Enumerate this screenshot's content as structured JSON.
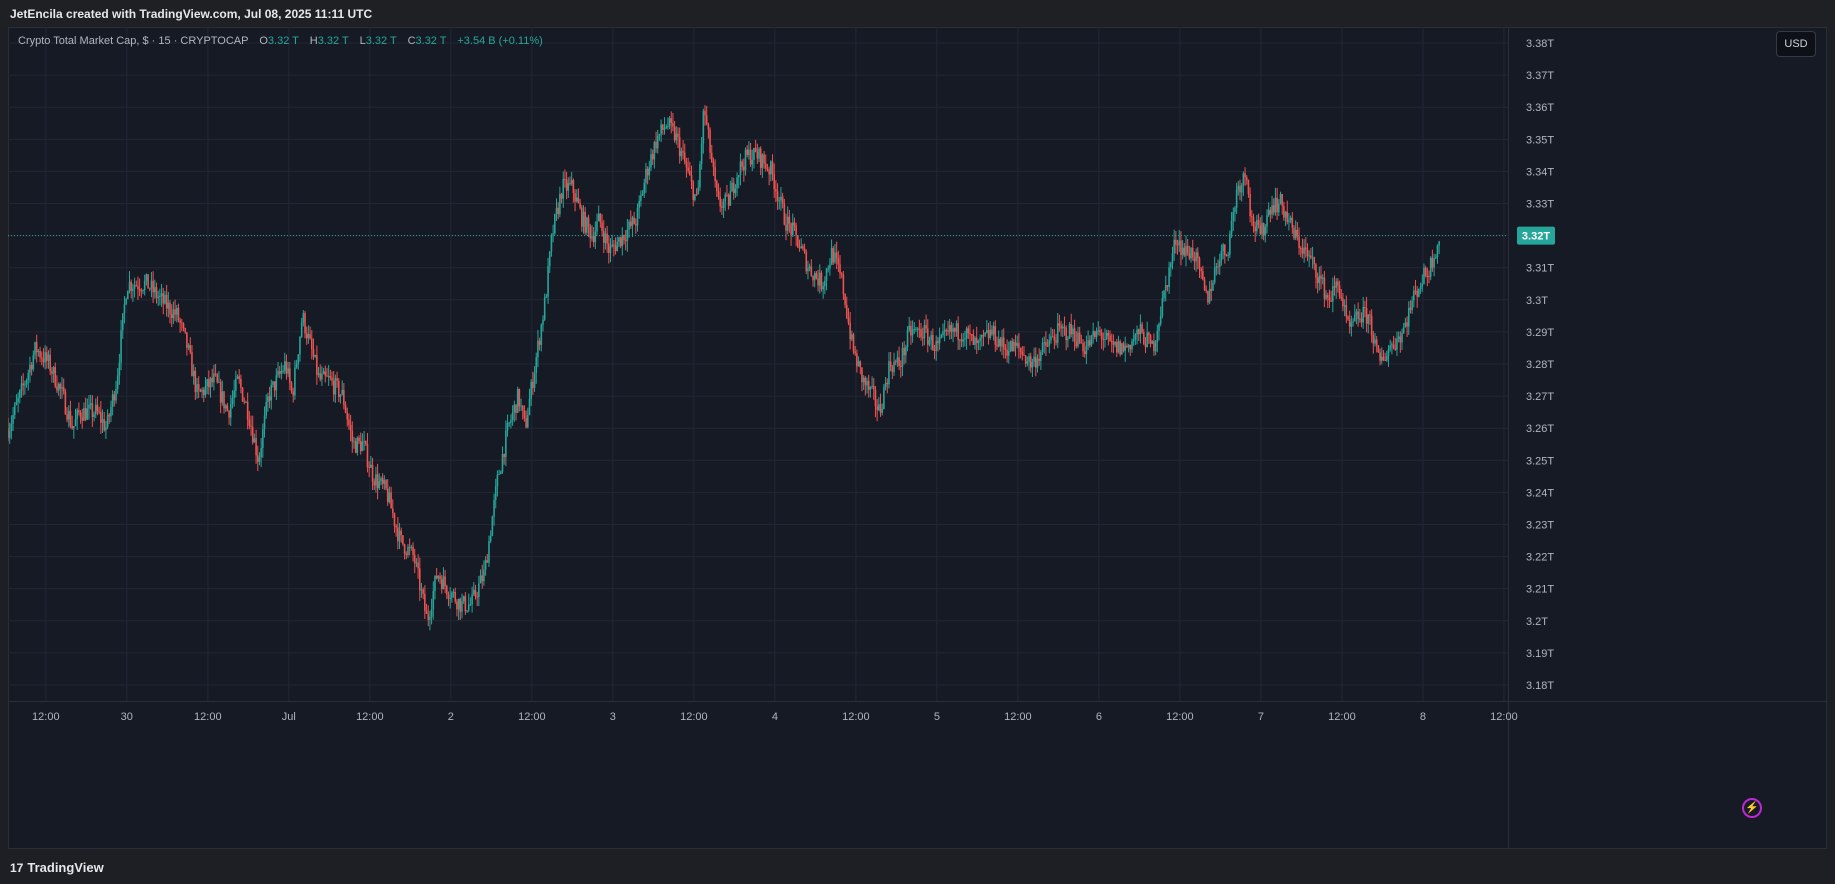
{
  "header": {
    "attribution": "JetEncila created with TradingView.com, Jul 08, 2025 11:11 UTC"
  },
  "legend": {
    "title": "Crypto Total Market Cap, $ · 15 · CRYPTOCAP",
    "o_label": "O",
    "o_value": "3.32 T",
    "h_label": "H",
    "h_value": "3.32 T",
    "l_label": "L",
    "l_value": "3.32 T",
    "c_label": "C",
    "c_value": "3.32 T",
    "change": "+3.54 B (+0.11%)"
  },
  "currency_button": "USD",
  "footer": {
    "logo_text": "TradingView",
    "logo_mark": "17"
  },
  "colors": {
    "up": "#26a69a",
    "down": "#ef5350",
    "background": "#161a25",
    "grid": "#232735",
    "price_line": "#26a69a",
    "axis_text": "#b2b5be"
  },
  "icons": {
    "alert": "lightning-icon"
  },
  "chart_data": {
    "type": "candlestick",
    "grid": true,
    "price_scale": "right",
    "ylim": [
      3.175,
      3.385
    ],
    "y_ticks": [
      3.18,
      3.19,
      3.2,
      3.21,
      3.22,
      3.23,
      3.24,
      3.25,
      3.26,
      3.27,
      3.28,
      3.29,
      3.3,
      3.31,
      3.32,
      3.33,
      3.34,
      3.35,
      3.36,
      3.37,
      3.38
    ],
    "y_tick_labels": [
      "3.18T",
      "3.19T",
      "3.2T",
      "3.21T",
      "3.22T",
      "3.23T",
      "3.24T",
      "3.25T",
      "3.26T",
      "3.27T",
      "3.28T",
      "3.29T",
      "3.3T",
      "3.31T",
      "3.32T",
      "3.33T",
      "3.34T",
      "3.35T",
      "3.36T",
      "3.37T",
      "3.38T"
    ],
    "x_ticks": [
      "12:00",
      "30",
      "12:00",
      "Jul",
      "12:00",
      "2",
      "12:00",
      "3",
      "12:00",
      "4",
      "12:00",
      "5",
      "12:00",
      "6",
      "12:00",
      "7",
      "12:00",
      "8",
      "12:00"
    ],
    "x_tick_hours": [
      12,
      24,
      36,
      48,
      60,
      72,
      84,
      96,
      108,
      120,
      132,
      144,
      156,
      168,
      180,
      192,
      204,
      216,
      228
    ],
    "x_range_hours": [
      6.4,
      228.6
    ],
    "last_price": 3.32,
    "last_price_label": "3.32T",
    "close_path_hours": [
      6.5,
      9,
      10.5,
      12.5,
      14.5,
      16,
      17,
      19.5,
      21,
      22.5,
      24,
      27,
      29,
      31.5,
      33,
      34.5,
      37,
      39,
      40.5,
      42,
      43.5,
      45,
      47.5,
      48.5,
      50,
      52.5,
      54,
      56,
      57.5,
      59,
      60.5,
      62.5,
      64.5,
      66.5,
      68.5,
      70,
      71.5,
      73.5,
      75,
      77,
      79,
      80.5,
      82,
      83,
      84.5,
      86,
      87,
      88.5,
      90,
      91.5,
      93,
      94,
      95.5,
      97.5,
      99.5,
      101,
      102.5,
      104,
      105.5,
      107,
      108.5,
      109.5,
      110.5,
      111.5,
      113,
      114.5,
      116,
      117.5,
      119.5,
      121.5,
      123,
      125,
      127,
      128.5,
      130,
      131.5,
      133,
      134.5,
      135.5,
      137,
      138.5,
      140,
      142,
      144,
      146,
      148,
      150,
      152,
      154,
      156,
      158,
      160,
      162,
      164,
      166,
      168,
      170,
      172,
      174,
      176,
      178,
      179.5,
      180.5,
      182,
      184,
      186,
      187,
      188.5,
      190,
      190.5,
      192,
      193.5,
      195,
      196,
      197,
      198.5,
      200,
      202,
      203.5,
      205,
      206.5,
      208,
      209.5,
      211,
      213,
      214.5,
      215.5,
      217,
      218.5,
      220,
      221.5,
      223,
      225,
      227,
      228.5
    ],
    "close_path_values": [
      3.26,
      3.275,
      3.285,
      3.28,
      3.27,
      3.26,
      3.265,
      3.265,
      3.26,
      3.275,
      3.305,
      3.305,
      3.3,
      3.295,
      3.285,
      3.27,
      3.275,
      3.265,
      3.275,
      3.265,
      3.25,
      3.27,
      3.28,
      3.27,
      3.295,
      3.275,
      3.275,
      3.27,
      3.255,
      3.255,
      3.245,
      3.24,
      3.225,
      3.22,
      3.2,
      3.215,
      3.21,
      3.205,
      3.205,
      3.215,
      3.245,
      3.26,
      3.27,
      3.26,
      3.28,
      3.3,
      3.32,
      3.335,
      3.335,
      3.325,
      3.32,
      3.325,
      3.315,
      3.32,
      3.325,
      3.34,
      3.35,
      3.355,
      3.35,
      3.34,
      3.33,
      3.36,
      3.345,
      3.33,
      3.33,
      3.34,
      3.345,
      3.345,
      3.34,
      3.325,
      3.32,
      3.31,
      3.305,
      3.315,
      3.305,
      3.285,
      3.275,
      3.27,
      3.265,
      3.28,
      3.28,
      3.29,
      3.29,
      3.285,
      3.29,
      3.29,
      3.285,
      3.29,
      3.285,
      3.285,
      3.28,
      3.285,
      3.29,
      3.29,
      3.285,
      3.29,
      3.285,
      3.285,
      3.29,
      3.285,
      3.305,
      3.32,
      3.315,
      3.315,
      3.3,
      3.315,
      3.315,
      3.335,
      3.34,
      3.325,
      3.32,
      3.33,
      3.33,
      3.325,
      3.32,
      3.315,
      3.31,
      3.3,
      3.305,
      3.29,
      3.295,
      3.295,
      3.28,
      3.285,
      3.29,
      3.3,
      3.305,
      3.31,
      3.32
    ]
  }
}
